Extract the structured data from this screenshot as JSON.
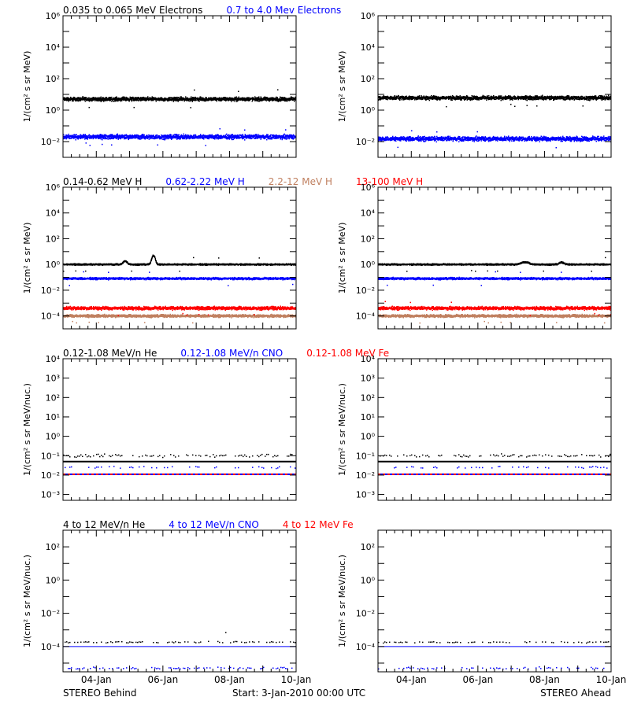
{
  "colors": {
    "black": "#000000",
    "blue": "#0000ff",
    "tan": "#c08060",
    "red": "#ff0000"
  },
  "footer": {
    "left": "STEREO Behind",
    "center": "Start:  3-Jan-2010 00:00 UTC",
    "right": "STEREO Ahead"
  },
  "chart_data": [
    {
      "type": "scatter",
      "panel": "electrons-behind",
      "yscale": "log",
      "ylim": [
        0.001,
        1000000
      ],
      "ylabel": "1/(cm² s sr MeV)",
      "ytick_labels": [
        {
          "value": 0.01,
          "label": "10⁻²"
        },
        {
          "value": 1,
          "label": "10⁰"
        },
        {
          "value": 100,
          "label": "10²"
        },
        {
          "value": 10000,
          "label": "10⁴"
        },
        {
          "value": 1000000,
          "label": "10⁶"
        }
      ],
      "xlim": [
        "2010-01-03",
        "2010-01-10"
      ],
      "xtick_labels": [],
      "legend": [
        {
          "label": "0.035 to 0.065 MeV Electrons",
          "color": "#000000"
        },
        {
          "label": "0.7 to 4.0 Mev Electrons",
          "color": "#0000ff"
        }
      ],
      "series": [
        {
          "color": "#000000",
          "level": 5,
          "band": 1.5,
          "style": "dots"
        },
        {
          "color": "#0000ff",
          "level": 0.02,
          "band": 1.6,
          "style": "dots"
        }
      ]
    },
    {
      "type": "scatter",
      "panel": "electrons-ahead",
      "yscale": "log",
      "ylim": [
        0.001,
        1000000
      ],
      "ylabel": "1/(cm² s sr MeV)",
      "ytick_labels": [
        {
          "value": 0.01,
          "label": "10⁻²"
        },
        {
          "value": 1,
          "label": "10⁰"
        },
        {
          "value": 100,
          "label": "10²"
        },
        {
          "value": 10000,
          "label": "10⁴"
        },
        {
          "value": 1000000,
          "label": "10⁶"
        }
      ],
      "xlim": [
        "2010-01-03",
        "2010-01-10"
      ],
      "xtick_labels": [],
      "legend": [],
      "series": [
        {
          "color": "#000000",
          "level": 6,
          "band": 1.5,
          "style": "dots"
        },
        {
          "color": "#0000ff",
          "level": 0.015,
          "band": 1.6,
          "style": "dots"
        }
      ]
    },
    {
      "type": "scatter",
      "panel": "protons-behind",
      "yscale": "log",
      "ylim": [
        1e-05,
        1000000
      ],
      "ylabel": "1/(cm² s sr MeV)",
      "ytick_labels": [
        {
          "value": 0.0001,
          "label": "10⁻⁴"
        },
        {
          "value": 0.01,
          "label": "10⁻²"
        },
        {
          "value": 1,
          "label": "10⁰"
        },
        {
          "value": 100,
          "label": "10²"
        },
        {
          "value": 10000,
          "label": "10⁴"
        },
        {
          "value": 1000000,
          "label": "10⁶"
        }
      ],
      "xlim": [
        "2010-01-03",
        "2010-01-10"
      ],
      "xtick_labels": [],
      "legend": [
        {
          "label": "0.14-0.62 MeV H",
          "color": "#000000"
        },
        {
          "label": "0.62-2.22 MeV H",
          "color": "#0000ff"
        },
        {
          "label": "2.2-12 MeV H",
          "color": "#c08060"
        },
        {
          "label": "13-100 MeV H",
          "color": "#ff0000"
        }
      ],
      "series": [
        {
          "color": "#c08060",
          "level": 0.0001,
          "band": 1.4,
          "style": "dots"
        },
        {
          "color": "#ff0000",
          "level": 0.0004,
          "band": 1.5,
          "style": "dots"
        },
        {
          "color": "#0000ff",
          "level": 0.08,
          "band": 1.3,
          "style": "dots"
        },
        {
          "color": "#000000",
          "level": 1,
          "band": 1.2,
          "style": "dots",
          "bumps": [
            {
              "day": 1.85,
              "peak": 1.8,
              "width": 0.08
            },
            {
              "day": 2.7,
              "peak": 5,
              "width": 0.06
            }
          ]
        }
      ]
    },
    {
      "type": "scatter",
      "panel": "protons-ahead",
      "yscale": "log",
      "ylim": [
        1e-05,
        1000000
      ],
      "ylabel": "1/(cm² s sr MeV)",
      "ytick_labels": [
        {
          "value": 0.0001,
          "label": "10⁻⁴"
        },
        {
          "value": 0.01,
          "label": "10⁻²"
        },
        {
          "value": 1,
          "label": "10⁰"
        },
        {
          "value": 100,
          "label": "10²"
        },
        {
          "value": 10000,
          "label": "10⁴"
        },
        {
          "value": 1000000,
          "label": "10⁶"
        }
      ],
      "xlim": [
        "2010-01-03",
        "2010-01-10"
      ],
      "xtick_labels": [],
      "legend": [],
      "series": [
        {
          "color": "#c08060",
          "level": 0.0001,
          "band": 1.4,
          "style": "dots"
        },
        {
          "color": "#ff0000",
          "level": 0.0004,
          "band": 1.5,
          "style": "dots"
        },
        {
          "color": "#0000ff",
          "level": 0.08,
          "band": 1.3,
          "style": "dots"
        },
        {
          "color": "#000000",
          "level": 1,
          "band": 1.2,
          "style": "dots",
          "bumps": [
            {
              "day": 4.4,
              "peak": 1.5,
              "width": 0.15
            },
            {
              "day": 5.5,
              "peak": 1.4,
              "width": 0.1
            }
          ]
        }
      ]
    },
    {
      "type": "scatter",
      "panel": "heavy-ions-low-behind",
      "yscale": "log",
      "ylim": [
        0.0005,
        10000
      ],
      "ylabel": "1/(cm² s sr MeV/nuc.)",
      "ytick_labels": [
        {
          "value": 0.001,
          "label": "10⁻³"
        },
        {
          "value": 0.01,
          "label": "10⁻²"
        },
        {
          "value": 0.1,
          "label": "10⁻¹"
        },
        {
          "value": 1,
          "label": "10⁰"
        },
        {
          "value": 10,
          "label": "10¹"
        },
        {
          "value": 100,
          "label": "10²"
        },
        {
          "value": 1000,
          "label": "10³"
        },
        {
          "value": 10000,
          "label": "10⁴"
        }
      ],
      "xlim": [
        "2010-01-03",
        "2010-01-10"
      ],
      "xtick_labels": [],
      "legend": [
        {
          "label": "0.12-1.08 MeV/n He",
          "color": "#000000"
        },
        {
          "label": "0.12-1.08 MeV/n CNO",
          "color": "#0000ff"
        },
        {
          "label": "0.12-1.08 MeV Fe",
          "color": "#ff0000"
        }
      ],
      "series": [
        {
          "color": "#000000",
          "level": 0.05,
          "style": "line"
        },
        {
          "color": "#000000",
          "level": 0.1,
          "band": 1.3,
          "style": "sparse",
          "density": 0.6
        },
        {
          "color": "#0000ff",
          "level": 0.025,
          "band": 1.2,
          "style": "sparse",
          "density": 0.3
        },
        {
          "color": "#ff0000",
          "level": 0.011,
          "style": "dashed"
        },
        {
          "color": "#0000ff",
          "level": 0.011,
          "style": "dashed-offset"
        }
      ]
    },
    {
      "type": "scatter",
      "panel": "heavy-ions-low-ahead",
      "yscale": "log",
      "ylim": [
        0.0005,
        10000
      ],
      "ylabel": "1/(cm² s sr MeV/nuc.)",
      "ytick_labels": [
        {
          "value": 0.001,
          "label": "10⁻³"
        },
        {
          "value": 0.01,
          "label": "10⁻²"
        },
        {
          "value": 0.1,
          "label": "10⁻¹"
        },
        {
          "value": 1,
          "label": "10⁰"
        },
        {
          "value": 10,
          "label": "10¹"
        },
        {
          "value": 100,
          "label": "10²"
        },
        {
          "value": 1000,
          "label": "10³"
        },
        {
          "value": 10000,
          "label": "10⁴"
        }
      ],
      "xlim": [
        "2010-01-03",
        "2010-01-10"
      ],
      "xtick_labels": [],
      "legend": [],
      "series": [
        {
          "color": "#000000",
          "level": 0.05,
          "style": "line"
        },
        {
          "color": "#000000",
          "level": 0.1,
          "band": 1.3,
          "style": "sparse",
          "density": 0.55
        },
        {
          "color": "#0000ff",
          "level": 0.025,
          "band": 1.2,
          "style": "sparse",
          "density": 0.3
        },
        {
          "color": "#ff0000",
          "level": 0.011,
          "style": "dashed"
        },
        {
          "color": "#0000ff",
          "level": 0.011,
          "style": "dashed-offset"
        }
      ]
    },
    {
      "type": "scatter",
      "panel": "heavy-ions-high-behind",
      "yscale": "log",
      "ylim": [
        3e-06,
        1000
      ],
      "ylabel": "1/(cm² s sr MeV/nuc.)",
      "ytick_labels": [
        {
          "value": 0.0001,
          "label": "10⁻⁴"
        },
        {
          "value": 0.01,
          "label": "10⁻²"
        },
        {
          "value": 1,
          "label": "10⁰"
        },
        {
          "value": 100,
          "label": "10²"
        }
      ],
      "xlim": [
        "2010-01-03",
        "2010-01-10"
      ],
      "xtick_labels": [
        "04-Jan",
        "06-Jan",
        "08-Jan",
        "10-Jan"
      ],
      "legend": [
        {
          "label": "4 to 12 MeV/n He",
          "color": "#000000"
        },
        {
          "label": "4 to 12 MeV/n CNO",
          "color": "#0000ff"
        },
        {
          "label": "4 to 12 MeV Fe",
          "color": "#ff0000"
        }
      ],
      "series": [
        {
          "color": "#0000ff",
          "level": 0.0001,
          "style": "line"
        },
        {
          "color": "#000000",
          "level": 0.00018,
          "band": 1.15,
          "style": "sparse",
          "density": 0.45
        },
        {
          "color": "#0000ff",
          "level": 5e-06,
          "band": 1.2,
          "style": "sparse",
          "density": 0.4
        }
      ]
    },
    {
      "type": "scatter",
      "panel": "heavy-ions-high-ahead",
      "yscale": "log",
      "ylim": [
        3e-06,
        1000
      ],
      "ylabel": "1/(cm² s sr MeV/nuc.)",
      "ytick_labels": [
        {
          "value": 0.0001,
          "label": "10⁻⁴"
        },
        {
          "value": 0.01,
          "label": "10⁻²"
        },
        {
          "value": 1,
          "label": "10⁰"
        },
        {
          "value": 100,
          "label": "10²"
        }
      ],
      "xlim": [
        "2010-01-03",
        "2010-01-10"
      ],
      "xtick_labels": [
        "04-Jan",
        "06-Jan",
        "08-Jan",
        "10-Jan"
      ],
      "legend": [],
      "series": [
        {
          "color": "#0000ff",
          "level": 0.0001,
          "style": "line"
        },
        {
          "color": "#000000",
          "level": 0.00018,
          "band": 1.15,
          "style": "sparse",
          "density": 0.45
        },
        {
          "color": "#0000ff",
          "level": 5e-06,
          "band": 1.2,
          "style": "sparse",
          "density": 0.4
        }
      ]
    }
  ]
}
